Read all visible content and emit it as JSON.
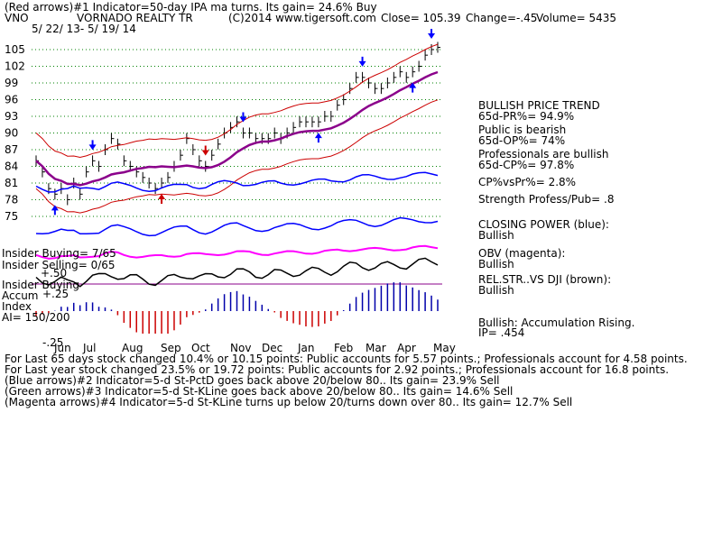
{
  "header": {
    "line1": "(Red arrows)#1 Indicator=50-day IPA ma turns. Its gain= 24.6% Buy",
    "ticker": "VNO",
    "company": "VORNADO REALTY TR",
    "copyright": "(C)2014 www.tigersoft.com",
    "close": "Close= 105.39",
    "change": "Change=-.45",
    "volume": "Volume= 5435",
    "date_range": "5/ 22/ 13- 5/ 19/ 14"
  },
  "chart_data": {
    "type": "line",
    "title": "VORNADO REALTY TR",
    "price_ticks": [
      "105",
      "102",
      "99",
      "96",
      "93",
      "90",
      "87",
      "84",
      "81",
      "78",
      "75"
    ],
    "price_tick_values": [
      105,
      102,
      99,
      96,
      93,
      90,
      87,
      84,
      81,
      78,
      75
    ],
    "ylim": [
      75,
      107
    ],
    "x_labels": [
      "Jun",
      "Jul",
      "Aug",
      "Sep",
      "Oct",
      "Nov",
      "Dec",
      "Jan",
      "Feb",
      "Mar",
      "Apr",
      "May"
    ],
    "accum_ticks": [
      "+.50",
      "+.25",
      "-.25"
    ],
    "series": [
      {
        "name": "Close",
        "color": "#000000",
        "values": [
          85,
          83,
          80,
          79,
          80,
          78,
          81,
          79,
          83,
          85,
          84,
          87,
          89,
          88,
          85,
          84,
          83,
          82,
          81,
          80,
          81,
          82,
          84,
          86,
          89,
          87,
          85,
          84,
          86,
          88,
          90,
          91,
          92,
          90,
          90,
          89,
          89,
          89,
          90,
          89,
          90,
          91,
          92,
          92,
          92,
          92,
          93,
          93,
          95,
          96,
          98,
          100,
          100,
          99,
          98,
          98,
          99,
          100,
          101,
          100,
          101,
          102,
          104,
          105,
          105.4
        ]
      }
    ],
    "annotations": {
      "ipa_ma_50d": "purple moving average",
      "bands": "red upper/lower bands",
      "closing_power": "blue",
      "obv": "magenta",
      "rel_str_vs_dji": "black"
    }
  },
  "side": {
    "trend": "BULLISH PRICE TREND",
    "pr": "65d-PR%= 94.9%",
    "public": "Public is bearish",
    "op": "65d-OP%= 74%",
    "pros": "Professionals are bullish",
    "cp": "65d-CP%= 97.8%",
    "cpvspr": "CP%vsPr%= 2.8%",
    "strength": "Strength Profess/Pub= .8",
    "closing_power": "CLOSING POWER (blue):",
    "closing_power_val": "Bullish",
    "obv": "OBV (magenta):",
    "obv_val": "Bullish",
    "relstr": "REL.STR..VS DJI (brown):",
    "relstr_val": "Bullish",
    "accum": "Bullish: Accumulation Rising.",
    "ip": "IP= .454"
  },
  "left_labels": {
    "insider_buying": "Insider Buying= 7/65",
    "insider_selling": "Insider Selling= 0/65",
    "insider_buying2": "Insider Buying",
    "accum": "Accum",
    "index": "Index",
    "ai": "AI= 150/200"
  },
  "bottom": {
    "line1": "For Last 65 days stock changed  10.4% or  10.15 points:  Public accounts for  5.57 points.;  Professionals account for  4.58 points.",
    "line2": "For Last year stock changed  23.5% or  19.72 points:  Public accounts for  2.92 points.;  Professionals account for  16.8 points.",
    "line3": "(Blue arrows)#2 Indicator=5-d St-PctD goes back above 20/below 80.. Its gain= 23.9% Sell",
    "line4": "(Green arrows)#3 Indicator=5-d St-KLine goes back above 20/below 80.. Its gain= 14.6% Sell",
    "line5": "(Magenta arrows)#4 Indicator=5-d St-KLine turns up below 20/turns down over 80.. Its gain= 12.7% Sell"
  },
  "colors": {
    "price": "#000000",
    "ma": "#8b008b",
    "band": "#cc0000",
    "closing_power": "#0000ff",
    "obv": "#ff00ff",
    "relstr": "#000000",
    "accum_pos": "#0000aa",
    "accum_neg": "#cc0000",
    "grid": "#008000"
  }
}
